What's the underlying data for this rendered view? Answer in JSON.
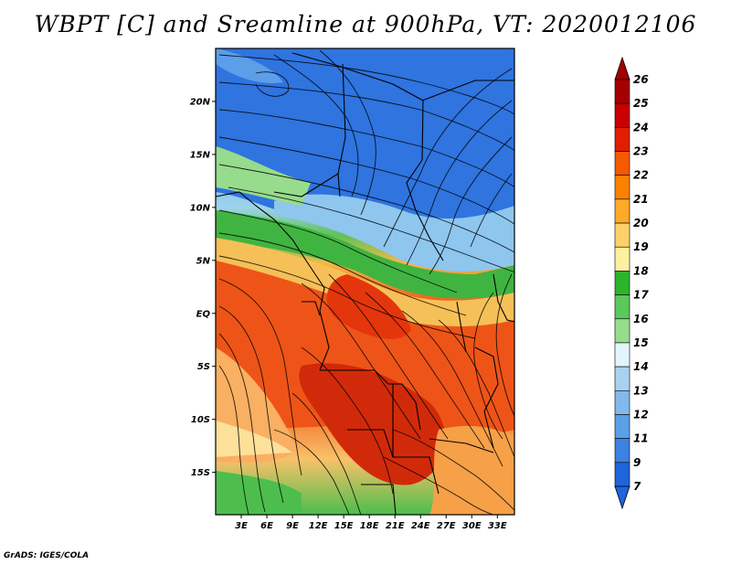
{
  "title": "WBPT [C] and Sreamline at 900hPa, VT: 2020012106",
  "credit": "GrADS: IGES/COLA",
  "lat_labels": [
    "20N",
    "15N",
    "10N",
    "5N",
    "EQ",
    "5S",
    "10S",
    "15S"
  ],
  "lat_values": [
    20,
    15,
    10,
    5,
    0,
    -5,
    -10,
    -15
  ],
  "lon_labels": [
    "3E",
    "6E",
    "9E",
    "12E",
    "15E",
    "18E",
    "21E",
    "24E",
    "27E",
    "30E",
    "33E"
  ],
  "lon_values": [
    3,
    6,
    9,
    12,
    15,
    18,
    21,
    24,
    27,
    30,
    33
  ],
  "lon_range": [
    0,
    35
  ],
  "lat_range": [
    -19,
    25
  ],
  "colorbar": {
    "labels": [
      "26",
      "25",
      "24",
      "23",
      "22",
      "21",
      "20",
      "19",
      "18",
      "17",
      "16",
      "15",
      "14",
      "13",
      "12",
      "11",
      "9",
      "7"
    ],
    "colors": [
      "#a50000",
      "#c80000",
      "#e11e00",
      "#f55a00",
      "#fa8200",
      "#fdaa28",
      "#fdd06a",
      "#fff0a0",
      "#2db42d",
      "#5ac85a",
      "#96dc8c",
      "#e1f5fa",
      "#aad2f0",
      "#82b9eb",
      "#5aa0e6",
      "#3c82e1",
      "#1e64dc"
    ],
    "top_arrow_color": "#a50000",
    "bottom_arrow_color": "#1e64dc"
  }
}
